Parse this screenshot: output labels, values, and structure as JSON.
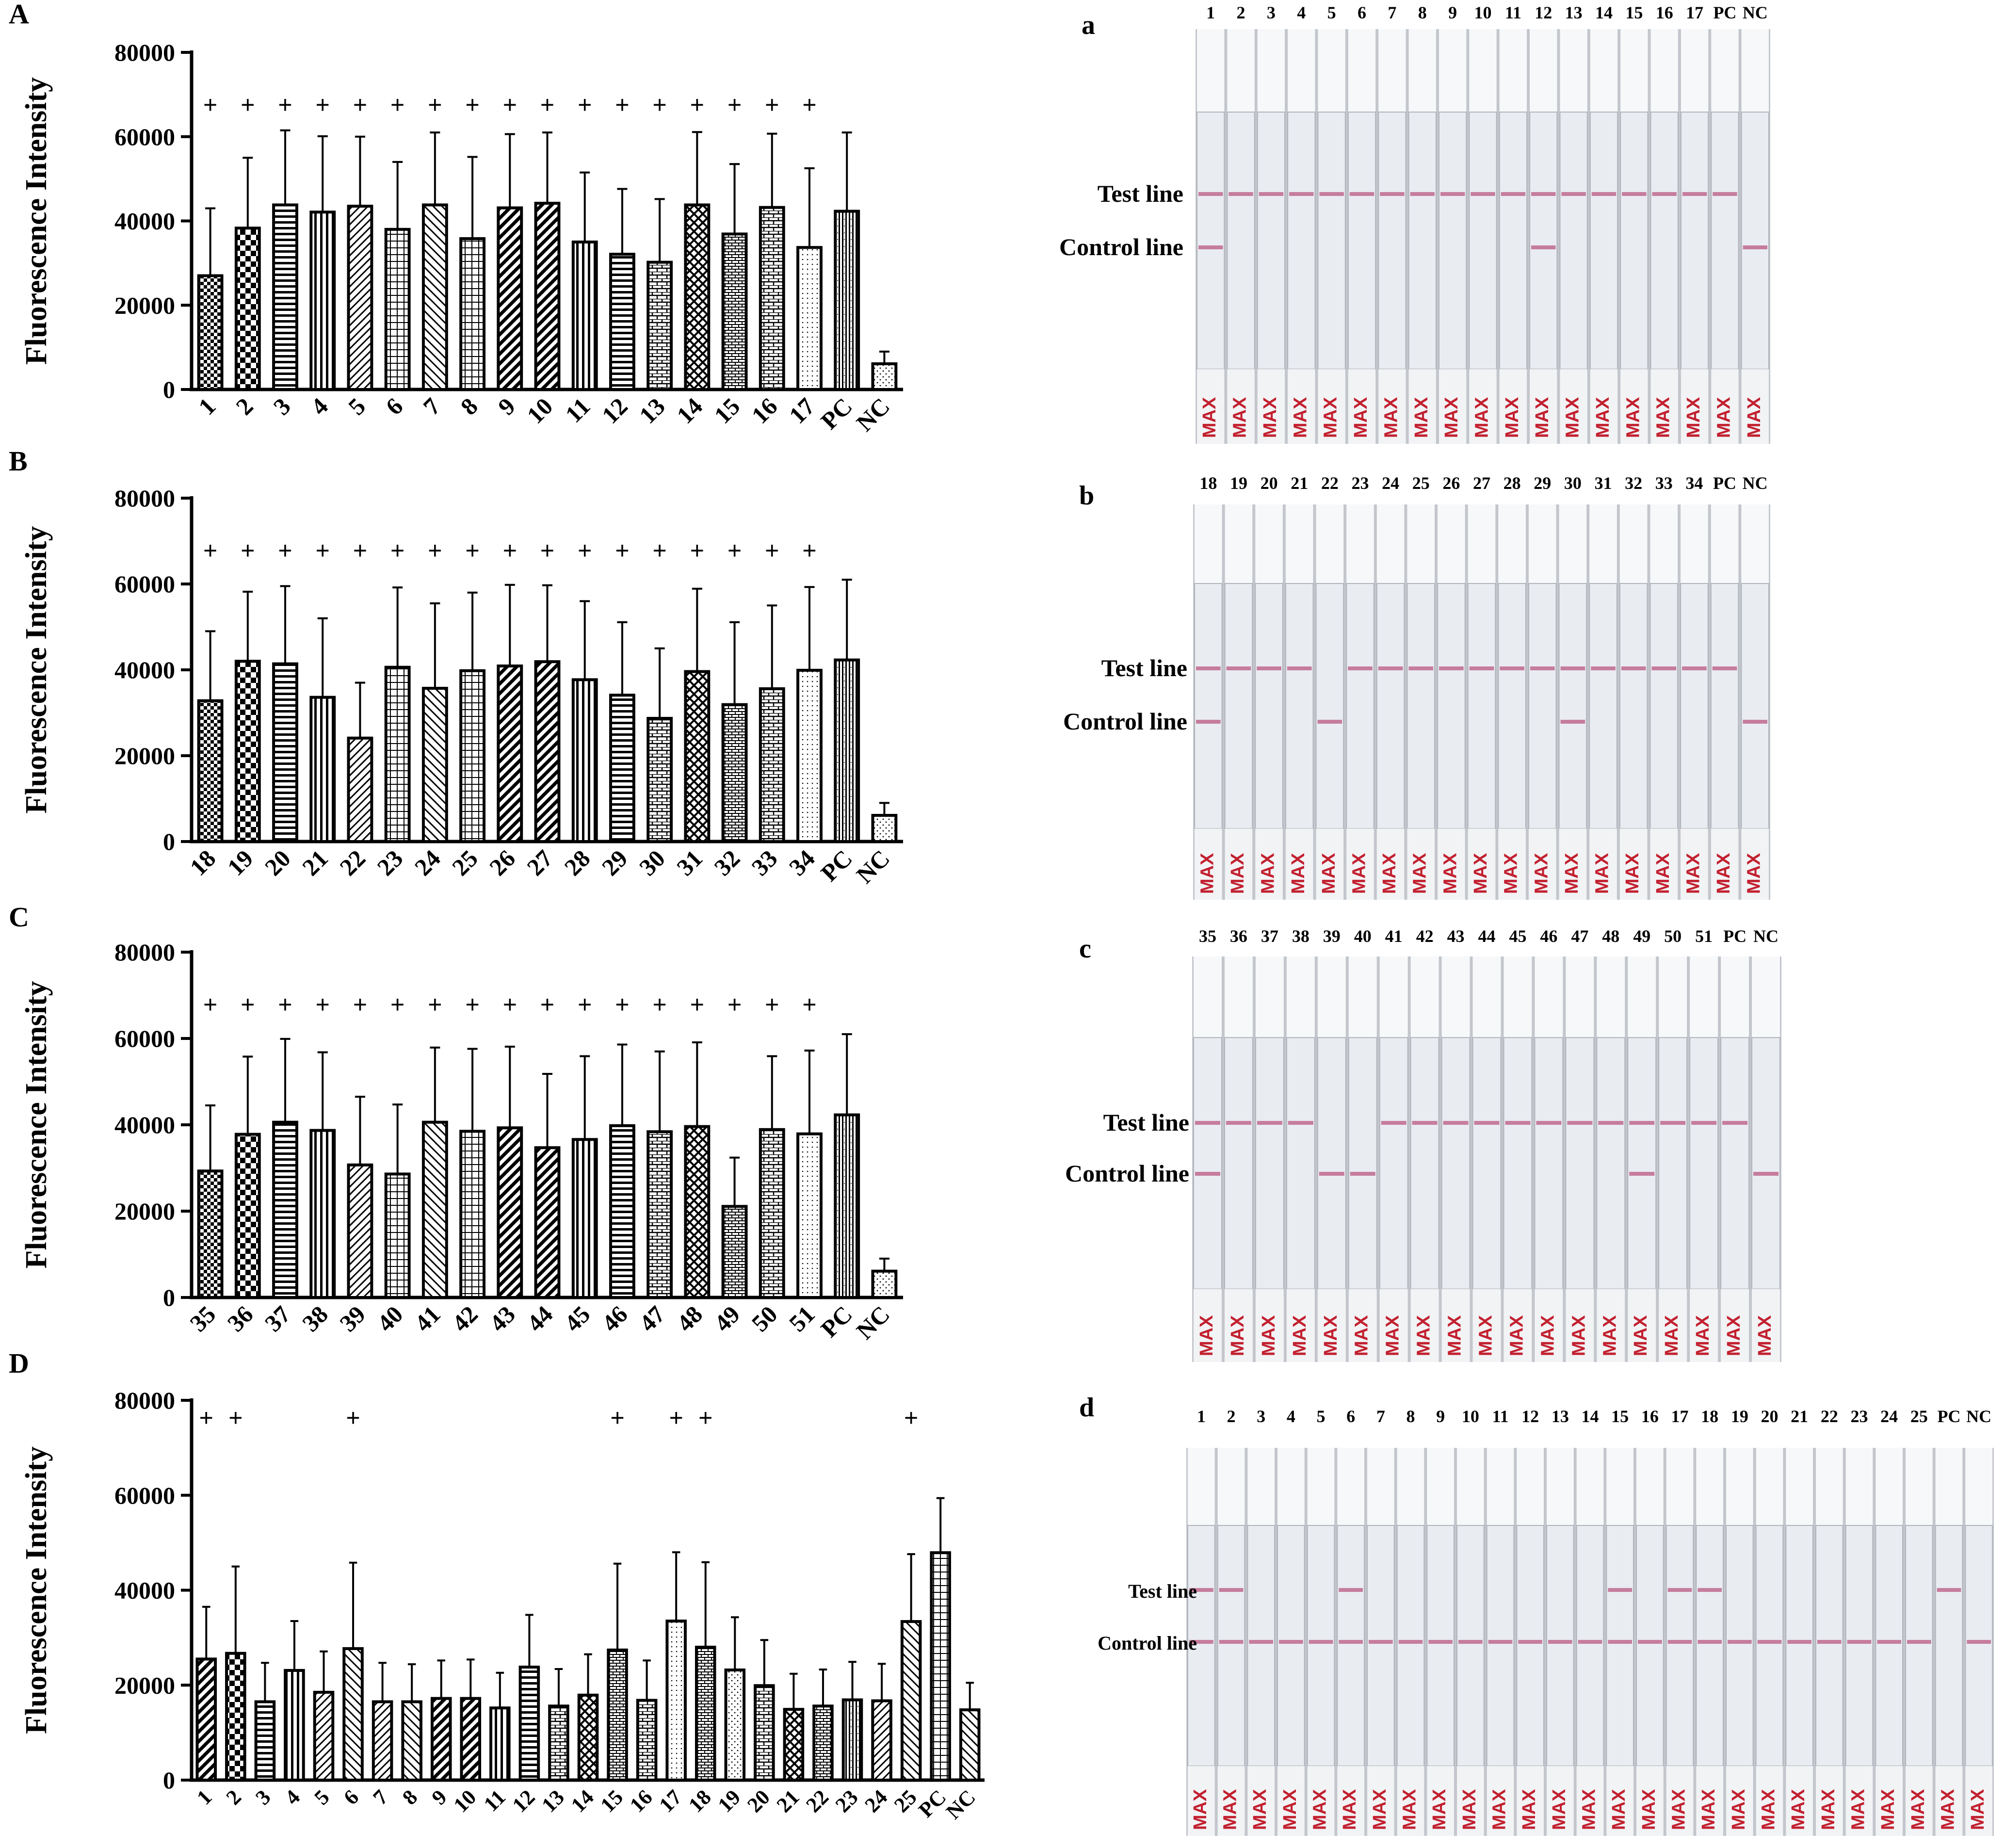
{
  "chart_data": [
    {
      "type": "bar",
      "panel_label": "A",
      "ylabel": "Fluorescence Intensity",
      "ylim": [
        0,
        80000
      ],
      "yticks": [
        "0",
        "20000",
        "40000",
        "60000",
        "80000"
      ],
      "categories": [
        "1",
        "2",
        "3",
        "4",
        "5",
        "6",
        "7",
        "8",
        "9",
        "10",
        "11",
        "12",
        "13",
        "14",
        "15",
        "16",
        "17",
        "PC",
        "NC"
      ],
      "values": [
        27000,
        38300,
        43800,
        42100,
        43500,
        38000,
        43800,
        35800,
        43100,
        44200,
        35000,
        32100,
        30200,
        43800,
        36900,
        43200,
        33700,
        42300,
        6100
      ],
      "error": [
        16000,
        16700,
        17700,
        18000,
        16500,
        16000,
        17200,
        19400,
        17500,
        16800,
        16500,
        15500,
        15000,
        17300,
        16600,
        17500,
        18800,
        18700,
        2900
      ],
      "positive_marker": "+",
      "positive": [
        true,
        true,
        true,
        true,
        true,
        true,
        true,
        true,
        true,
        true,
        true,
        true,
        true,
        true,
        true,
        true,
        true,
        false,
        false
      ]
    },
    {
      "type": "bar",
      "panel_label": "B",
      "ylabel": "Fluorescence Intensity",
      "ylim": [
        0,
        80000
      ],
      "yticks": [
        "0",
        "20000",
        "40000",
        "60000",
        "80000"
      ],
      "categories": [
        "18",
        "19",
        "20",
        "21",
        "22",
        "23",
        "24",
        "25",
        "26",
        "27",
        "28",
        "29",
        "30",
        "31",
        "32",
        "33",
        "34",
        "PC",
        "NC"
      ],
      "values": [
        32800,
        42000,
        41400,
        33600,
        24100,
        40600,
        35700,
        39800,
        40900,
        41900,
        37700,
        34100,
        28700,
        39600,
        31900,
        35600,
        39900,
        42300,
        6100
      ],
      "error": [
        16200,
        16200,
        18100,
        18400,
        12900,
        18600,
        19800,
        18200,
        18900,
        17800,
        18300,
        17000,
        16300,
        19300,
        19200,
        19400,
        19400,
        18700,
        2900
      ],
      "positive_marker": "+",
      "positive": [
        true,
        true,
        true,
        true,
        true,
        true,
        true,
        true,
        true,
        true,
        true,
        true,
        true,
        true,
        true,
        true,
        true,
        false,
        false
      ]
    },
    {
      "type": "bar",
      "panel_label": "C",
      "ylabel": "Fluorescence Intensity",
      "ylim": [
        0,
        80000
      ],
      "yticks": [
        "0",
        "20000",
        "40000",
        "60000",
        "80000"
      ],
      "categories": [
        "35",
        "36",
        "37",
        "38",
        "39",
        "40",
        "41",
        "42",
        "43",
        "44",
        "45",
        "46",
        "47",
        "48",
        "49",
        "50",
        "51",
        "PC",
        "NC"
      ],
      "values": [
        29300,
        37800,
        40600,
        38700,
        30700,
        28600,
        40600,
        38500,
        39300,
        34700,
        36600,
        39800,
        38400,
        39600,
        21100,
        38900,
        37900,
        42300,
        6100
      ],
      "error": [
        15200,
        18000,
        19300,
        18100,
        15800,
        16100,
        17300,
        19100,
        18800,
        17100,
        19300,
        18800,
        18600,
        19500,
        11300,
        17000,
        19300,
        18700,
        2900
      ],
      "positive_marker": "+",
      "positive": [
        true,
        true,
        true,
        true,
        true,
        true,
        true,
        true,
        true,
        true,
        true,
        true,
        true,
        true,
        true,
        true,
        true,
        false,
        false
      ]
    },
    {
      "type": "bar",
      "panel_label": "D",
      "ylabel": "Fluorescence Intensity",
      "ylim": [
        0,
        80000
      ],
      "yticks": [
        "0",
        "20000",
        "40000",
        "60000",
        "80000"
      ],
      "categories": [
        "1",
        "2",
        "3",
        "4",
        "5",
        "6",
        "7",
        "8",
        "9",
        "10",
        "11",
        "12",
        "13",
        "14",
        "15",
        "16",
        "17",
        "18",
        "19",
        "20",
        "21",
        "22",
        "23",
        "24",
        "25",
        "PC",
        "NC"
      ],
      "values": [
        25500,
        26700,
        16500,
        23100,
        18500,
        27700,
        16500,
        16500,
        17200,
        17200,
        15200,
        23800,
        15600,
        17900,
        27400,
        16800,
        33500,
        28000,
        23200,
        19900,
        14900,
        15600,
        16900,
        16700,
        33400,
        47900,
        14800
      ],
      "error": [
        11000,
        18300,
        8200,
        10400,
        8600,
        18100,
        8200,
        7900,
        8000,
        8200,
        7400,
        11000,
        7800,
        8600,
        18200,
        8400,
        14500,
        17900,
        11100,
        9600,
        7500,
        7700,
        8000,
        7800,
        14200,
        11500,
        5700
      ],
      "positive_marker": "+",
      "positive": [
        true,
        true,
        false,
        false,
        false,
        true,
        false,
        false,
        false,
        false,
        false,
        false,
        false,
        false,
        true,
        false,
        true,
        true,
        false,
        false,
        false,
        false,
        false,
        false,
        true,
        false,
        false
      ]
    }
  ],
  "strip_panels": [
    {
      "panel_label": "a",
      "lanes": [
        "1",
        "2",
        "3",
        "4",
        "5",
        "6",
        "7",
        "8",
        "9",
        "10",
        "11",
        "12",
        "13",
        "14",
        "15",
        "16",
        "17",
        "PC",
        "NC"
      ],
      "test_line_label": "Test line",
      "control_line_label": "Control line",
      "strip_text": "MAX"
    },
    {
      "panel_label": "b",
      "lanes": [
        "18",
        "19",
        "20",
        "21",
        "22",
        "23",
        "24",
        "25",
        "26",
        "27",
        "28",
        "29",
        "30",
        "31",
        "32",
        "33",
        "34",
        "PC",
        "NC"
      ],
      "test_line_label": "Test line",
      "control_line_label": "Control line",
      "strip_text": "MAX"
    },
    {
      "panel_label": "c",
      "lanes": [
        "35",
        "36",
        "37",
        "38",
        "39",
        "40",
        "41",
        "42",
        "43",
        "44",
        "45",
        "46",
        "47",
        "48",
        "49",
        "50",
        "51",
        "PC",
        "NC"
      ],
      "test_line_label": "Test line",
      "control_line_label": "Control line",
      "strip_text": "MAX"
    },
    {
      "panel_label": "d",
      "lanes": [
        "1",
        "2",
        "3",
        "4",
        "5",
        "6",
        "7",
        "8",
        "9",
        "10",
        "11",
        "12",
        "13",
        "14",
        "15",
        "16",
        "17",
        "18",
        "19",
        "20",
        "21",
        "22",
        "23",
        "24",
        "25",
        "PC",
        "NC"
      ],
      "test_line_label": "Test line",
      "control_line_label": "Control line",
      "strip_text": "MAX"
    }
  ],
  "colors": {
    "ink": "#000000",
    "paper": "#ffffff",
    "strip": "#e9ecf1",
    "pad": "#f7f8fa",
    "board": "#c3c6cc",
    "band": "#c06a8e",
    "max_text": "#c2202f"
  }
}
